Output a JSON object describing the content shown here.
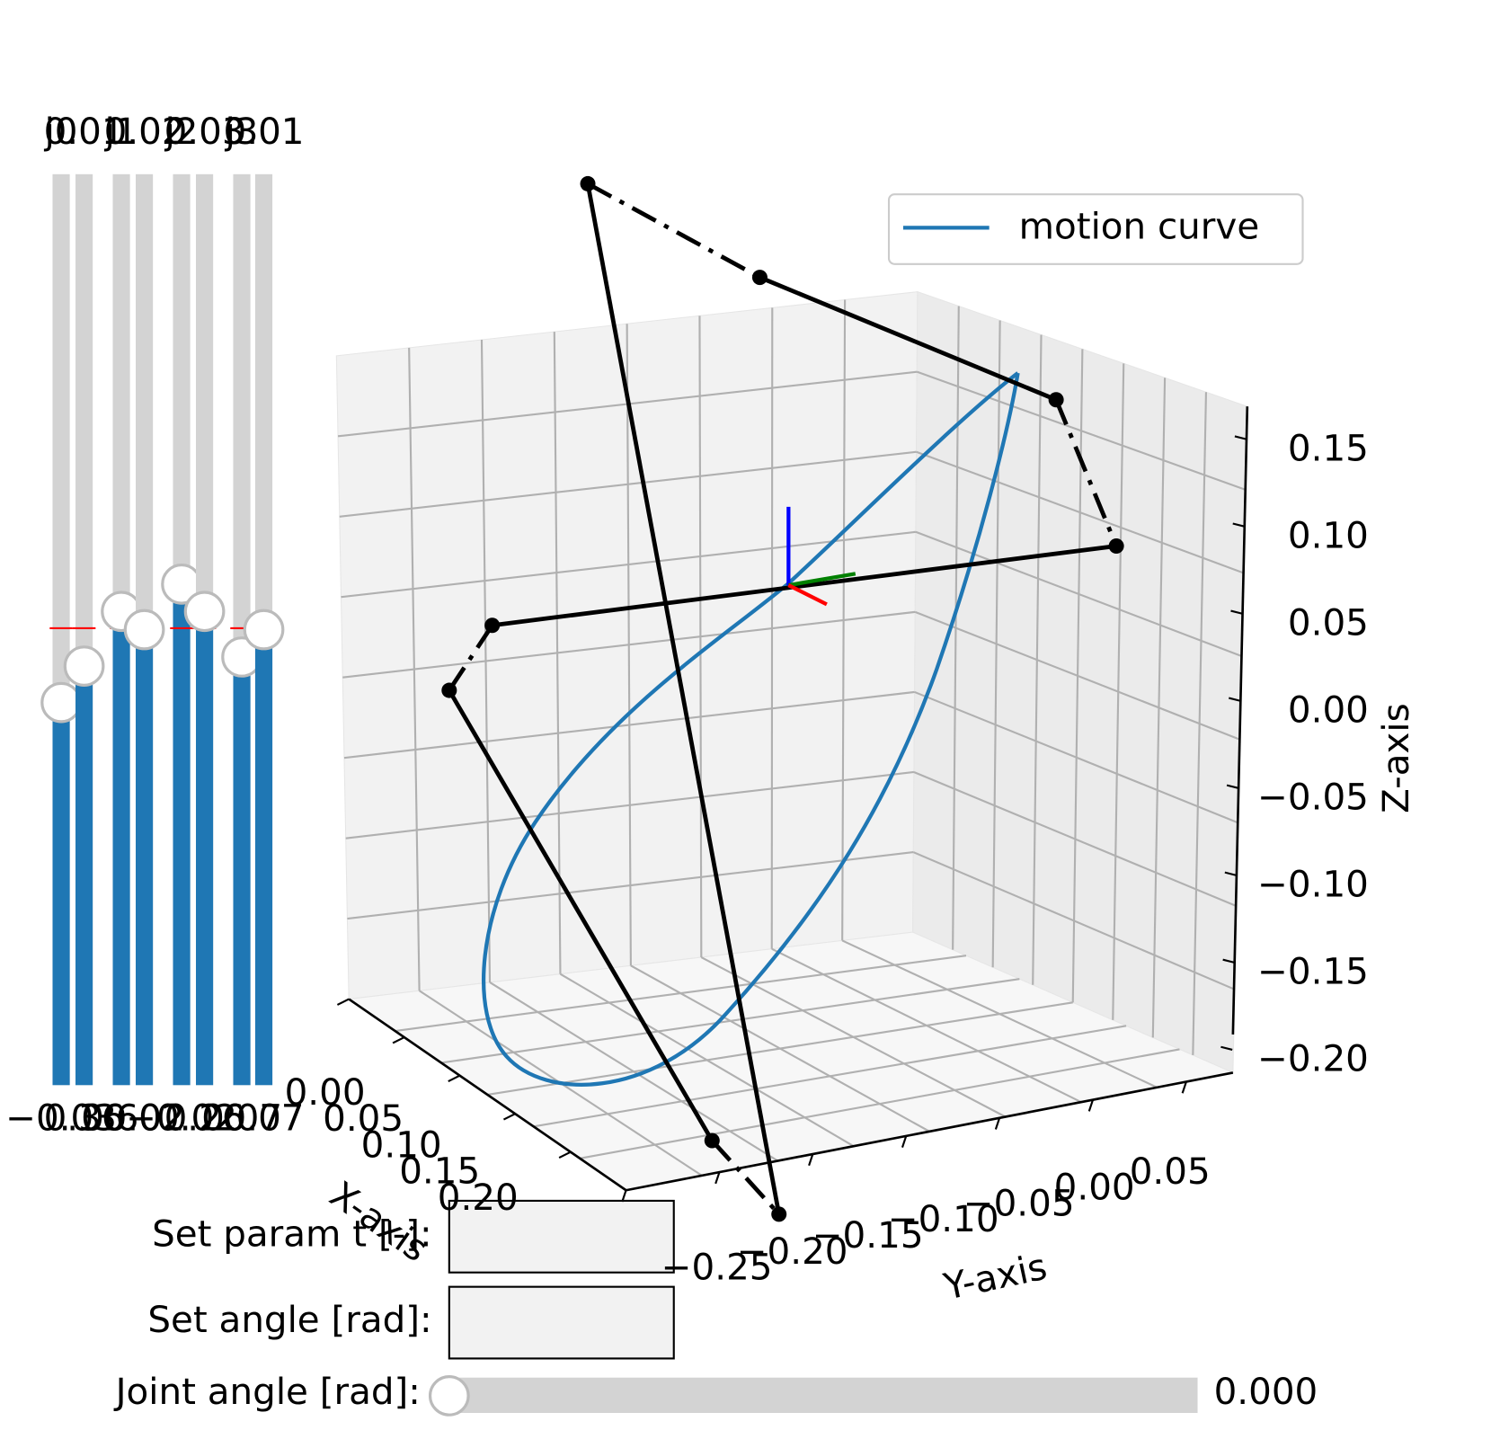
{
  "sliders": [
    {
      "label": "j0",
      "value": "−0.03",
      "level": 0.42
    },
    {
      "label": "0.01",
      "value": "0.36",
      "level": 0.46
    },
    {
      "label": "j1",
      "value": "0.60",
      "level": 0.52
    },
    {
      "label": "0.02",
      "value": "0.02",
      "level": 0.5
    },
    {
      "label": "j2",
      "value": "−0.02",
      "level": 0.55
    },
    {
      "label": "0.03",
      "value": "0.26",
      "level": 0.52
    },
    {
      "label": "j3",
      "value": "0.07",
      "level": 0.47
    },
    {
      "label": "0.01",
      "value": "0.07",
      "level": 0.5
    }
  ],
  "plot": {
    "legend": "motion curve",
    "xlabel": "X-axis",
    "ylabel": "Y-axis",
    "zlabel": "Z-axis",
    "xticks": [
      {
        "value": 0,
        "label": "0.00"
      },
      {
        "value": 0.05,
        "label": "0.05"
      },
      {
        "value": 0.1,
        "label": "0.10"
      },
      {
        "value": 0.15,
        "label": "0.15"
      },
      {
        "value": 0.2,
        "label": "0.20"
      }
    ],
    "yticks": [
      {
        "value": -0.25,
        "label": "−0.25"
      },
      {
        "value": -0.2,
        "label": "−0.20"
      },
      {
        "value": -0.15,
        "label": "−0.15"
      },
      {
        "value": -0.1,
        "label": "−0.10"
      },
      {
        "value": -0.05,
        "label": "−0.05"
      },
      {
        "value": 0,
        "label": "0.00"
      },
      {
        "value": 0.05,
        "label": "0.05"
      }
    ],
    "zticks": [
      {
        "value": 0.15,
        "label": "0.15"
      },
      {
        "value": 0.1,
        "label": "0.10"
      },
      {
        "value": 0.05,
        "label": "0.05"
      },
      {
        "value": 0,
        "label": "0.00"
      },
      {
        "value": -0.05,
        "label": "−0.05"
      },
      {
        "value": -0.1,
        "label": "−0.10"
      },
      {
        "value": -0.15,
        "label": "−0.15"
      },
      {
        "value": -0.2,
        "label": "−0.20"
      }
    ]
  },
  "controls": {
    "param_label": "Set param t [-]:",
    "angle_label": "Set angle [rad]:",
    "joint_label": "Joint angle [rad]:",
    "joint_value": "0.000"
  }
}
